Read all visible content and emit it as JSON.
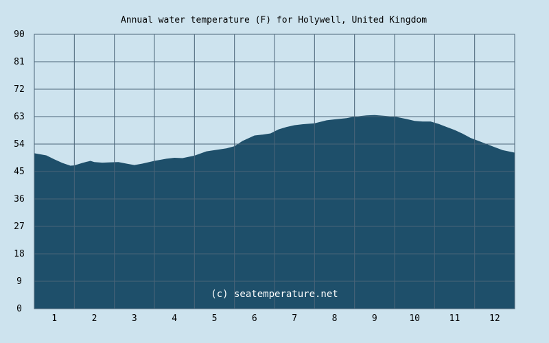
{
  "chart_data": {
    "type": "area",
    "title": "Annual water temperature (F) for Holywell, United Kingdom",
    "xlabel": "",
    "ylabel": "",
    "ylim": [
      0,
      90
    ],
    "yticks": [
      "0",
      "9",
      "18",
      "27",
      "36",
      "45",
      "54",
      "63",
      "72",
      "81",
      "90"
    ],
    "xticks": [
      "1",
      "2",
      "3",
      "4",
      "5",
      "6",
      "7",
      "8",
      "9",
      "10",
      "11",
      "12"
    ],
    "xlim": [
      0.5,
      12.5
    ],
    "grid": true,
    "annotation": "(c) seatemperature.net",
    "series": [
      {
        "x": [
          0.5,
          0.8,
          1.0,
          1.2,
          1.4,
          1.5,
          1.7,
          1.9,
          2.0,
          2.2,
          2.4,
          2.6,
          2.8,
          3.0,
          3.2,
          3.5,
          3.8,
          4.0,
          4.2,
          4.5,
          4.8,
          5.0,
          5.3,
          5.5,
          5.7,
          6.0,
          6.2,
          6.4,
          6.6,
          6.8,
          7.0,
          7.2,
          7.5,
          7.8,
          8.0,
          8.3,
          8.5,
          8.8,
          9.0,
          9.3,
          9.5,
          9.8,
          10.0,
          10.2,
          10.4,
          10.6,
          10.8,
          11.0,
          11.2,
          11.4,
          11.6,
          11.8,
          12.0,
          12.2,
          12.5
        ],
        "y": [
          51.0,
          50.3,
          49.0,
          47.8,
          46.9,
          47.0,
          47.8,
          48.5,
          48.1,
          47.9,
          48.0,
          48.1,
          47.6,
          47.1,
          47.6,
          48.5,
          49.2,
          49.5,
          49.4,
          50.2,
          51.6,
          52.0,
          52.6,
          53.3,
          55.0,
          56.8,
          57.1,
          57.5,
          58.8,
          59.6,
          60.2,
          60.5,
          60.8,
          61.8,
          62.1,
          62.5,
          63.0,
          63.4,
          63.5,
          63.2,
          63.0,
          62.2,
          61.6,
          61.4,
          61.4,
          60.6,
          59.6,
          58.6,
          57.4,
          56.0,
          55.0,
          54.0,
          53.0,
          52.0,
          51.2
        ]
      }
    ]
  },
  "colors": {
    "background": "#cde3ee",
    "area_fill": "#1e4f6a",
    "grid_line": "#4a6478",
    "text": "#000000",
    "watermark": "#ffffff"
  }
}
